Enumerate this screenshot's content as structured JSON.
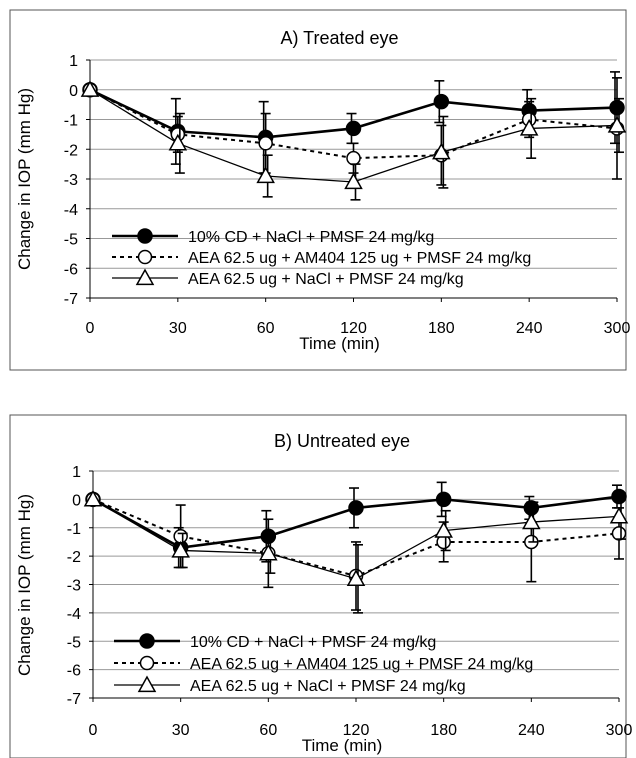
{
  "chart_data": [
    {
      "type": "line",
      "title": "A) Treated eye",
      "xlabel": "Time (min)",
      "ylabel": "Change in IOP (mm Hg)",
      "ylim": [
        -7,
        1
      ],
      "yticks": [
        1,
        0,
        -1,
        -2,
        -3,
        -4,
        -5,
        -6,
        -7
      ],
      "categories": [
        "0",
        "30",
        "60",
        "120",
        "180",
        "240",
        "300"
      ],
      "grid": "horizontal",
      "legend_position": "bottom-left",
      "series": [
        {
          "name": "10% CD + NaCl + PMSF 24 mg/kg",
          "marker": "filled-circle",
          "line": "solid-thick",
          "values": [
            0,
            -1.4,
            -1.6,
            -1.3,
            -0.4,
            -0.7,
            -0.6
          ],
          "errors": [
            0,
            1.1,
            1.2,
            0.5,
            0.7,
            0.7,
            1.2
          ]
        },
        {
          "name": "AEA 62.5 ug + AM404 125 ug + PMSF 24 mg/kg",
          "marker": "open-circle",
          "line": "dotted",
          "values": [
            0,
            -1.5,
            -1.8,
            -2.3,
            -2.2,
            -1.0,
            -1.3
          ],
          "errors": [
            0,
            0.6,
            1.0,
            0.5,
            1.0,
            0.6,
            1.7
          ]
        },
        {
          "name": "AEA 62.5 ug + NaCl + PMSF 24 mg/kg",
          "marker": "open-triangle",
          "line": "solid-thin",
          "values": [
            0,
            -1.8,
            -2.9,
            -3.1,
            -2.1,
            -1.3,
            -1.2
          ],
          "errors": [
            0,
            1.0,
            0.7,
            0.6,
            1.2,
            1.0,
            0.9
          ]
        }
      ]
    },
    {
      "type": "line",
      "title": "B) Untreated eye",
      "xlabel": "Time (min)",
      "ylabel": "Change in IOP (mm Hg)",
      "ylim": [
        -7,
        1
      ],
      "yticks": [
        1,
        0,
        -1,
        -2,
        -3,
        -4,
        -5,
        -6,
        -7
      ],
      "categories": [
        "0",
        "30",
        "60",
        "120",
        "180",
        "240",
        "300"
      ],
      "grid": "horizontal",
      "legend_position": "bottom-left",
      "series": [
        {
          "name": "10% CD + NaCl + PMSF 24 mg/kg",
          "marker": "filled-circle",
          "line": "solid-thick",
          "values": [
            0,
            -1.7,
            -1.3,
            -0.3,
            0,
            -0.3,
            0.1
          ],
          "errors": [
            0,
            0.7,
            0.9,
            0.7,
            0.6,
            0.4,
            0.4
          ]
        },
        {
          "name": "AEA 62.5 ug + AM404 125 ug + PMSF 24 mg/kg",
          "marker": "open-circle",
          "line": "dotted",
          "values": [
            0,
            -1.3,
            -1.9,
            -2.7,
            -1.5,
            -1.5,
            -1.2
          ],
          "errors": [
            0,
            1.1,
            1.2,
            1.2,
            0.7,
            1.4,
            0.9
          ]
        },
        {
          "name": "AEA 62.5 ug + NaCl + PMSF 24 mg/kg",
          "marker": "open-triangle",
          "line": "solid-thin",
          "values": [
            0,
            -1.8,
            -1.9,
            -2.8,
            -1.1,
            -0.8,
            -0.6
          ],
          "errors": [
            0,
            0.6,
            0.7,
            1.2,
            0.7,
            0.7,
            0.8
          ]
        }
      ]
    }
  ]
}
